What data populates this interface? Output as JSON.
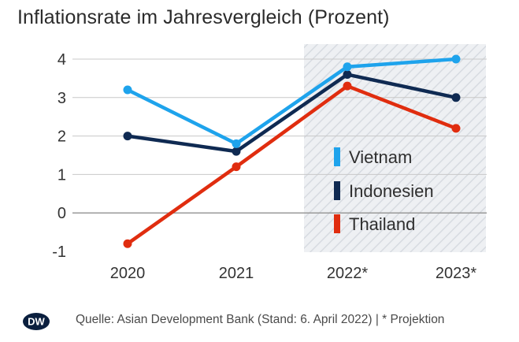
{
  "chart_data": {
    "type": "line",
    "title": "Inflationsrate im Jahresvergleich (Prozent)",
    "categories": [
      "2020",
      "2021",
      "2022*",
      "2023*"
    ],
    "projection_categories": [
      "2022*",
      "2023*"
    ],
    "ylim": [
      -1,
      4
    ],
    "yticks": [
      -1,
      0,
      1,
      2,
      3,
      4
    ],
    "grid": true,
    "legend_position": "right",
    "series": [
      {
        "name": "Vietnam",
        "color": "#1ea3ec",
        "values": [
          3.2,
          1.8,
          3.8,
          4.0
        ]
      },
      {
        "name": "Indonesien",
        "color": "#0f2a52",
        "values": [
          2.0,
          1.6,
          3.6,
          3.0
        ]
      },
      {
        "name": "Thailand",
        "color": "#e02d0f",
        "values": [
          -0.8,
          1.2,
          3.3,
          2.2
        ]
      }
    ]
  },
  "footer": {
    "logo_text": "DW",
    "source": "Quelle: Asian Development Bank (Stand: 6. April 2022) | * Projektion"
  },
  "colors": {
    "grid": "#c8c8c8",
    "zero_line": "#9a9a9a",
    "projection_shade": "#e9ecf0"
  }
}
